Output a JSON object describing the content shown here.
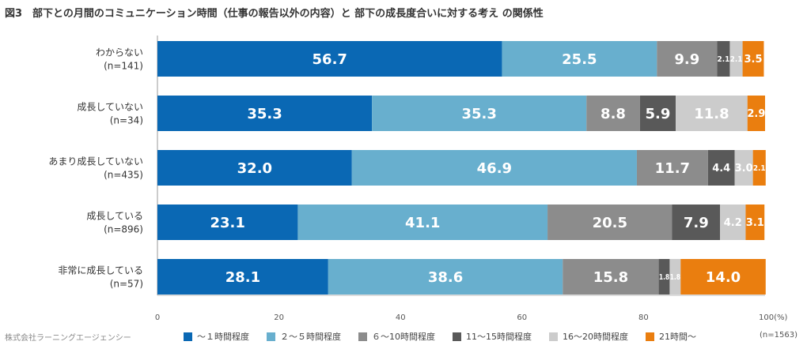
{
  "title": "図3　部下との月間のコミュニケーション時間（仕事の報告以外の内容）と 部下の成長度合いに対する考え の関係性",
  "source": "株式会社ラーニングエージェンシー",
  "sample": "(n=1563)",
  "chart_data": {
    "type": "bar",
    "orientation": "horizontal",
    "stacked": true,
    "percent": true,
    "title": "図3　部下との月間のコミュニケーション時間（仕事の報告以外の内容）と 部下の成長度合いに対する考え の関係性",
    "categories": [
      {
        "label": "わからない",
        "n": "(n=141)"
      },
      {
        "label": "成長していない",
        "n": "(n=34)"
      },
      {
        "label": "あまり成長していない",
        "n": "(n=435)"
      },
      {
        "label": "成長している",
        "n": "(n=896)"
      },
      {
        "label": "非常に成長している",
        "n": "(n=57)"
      }
    ],
    "series": [
      {
        "name": "～１時間程度",
        "color": "#0a68b4",
        "values": [
          56.7,
          35.3,
          32.0,
          23.1,
          28.1
        ]
      },
      {
        "name": "２～５時間程度",
        "color": "#68afce",
        "values": [
          25.5,
          35.3,
          46.9,
          41.1,
          38.6
        ]
      },
      {
        "name": "６～10時間程度",
        "color": "#8c8c8c",
        "values": [
          9.9,
          8.8,
          11.7,
          20.5,
          15.8
        ]
      },
      {
        "name": "11～15時間程度",
        "color": "#595959",
        "values": [
          2.1,
          5.9,
          4.4,
          7.9,
          1.8
        ]
      },
      {
        "name": "16～20時間程度",
        "color": "#cccccc",
        "values": [
          2.1,
          11.8,
          3.0,
          4.2,
          1.8
        ]
      },
      {
        "name": "21時間～",
        "color": "#ea7e0f",
        "values": [
          3.5,
          2.9,
          2.1,
          3.1,
          14.0
        ]
      }
    ],
    "xlim": [
      0,
      100
    ],
    "xticks": [
      "0",
      "20",
      "40",
      "60",
      "80",
      "100(%)"
    ]
  }
}
